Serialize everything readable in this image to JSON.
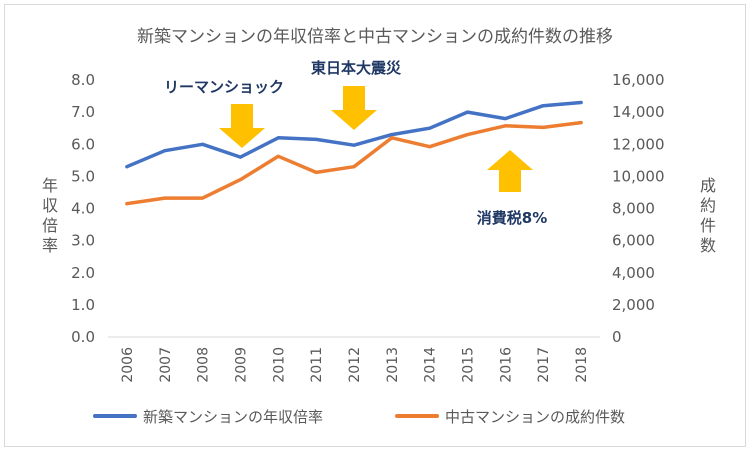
{
  "chart_data": {
    "type": "line",
    "title": "新築マンションの年収倍率と中古マンションの成約件数の推移",
    "categories": [
      "2006",
      "2007",
      "2008",
      "2009",
      "2010",
      "2011",
      "2012",
      "2013",
      "2014",
      "2015",
      "2016",
      "2017",
      "2018"
    ],
    "y_left": {
      "label": "年収倍率",
      "range": [
        0,
        8
      ],
      "ticks": [
        "0.0",
        "1.0",
        "2.0",
        "3.0",
        "4.0",
        "5.0",
        "6.0",
        "7.0",
        "8.0"
      ]
    },
    "y_right": {
      "label": "成約件数",
      "range": [
        0,
        16000
      ],
      "ticks": [
        "0",
        "2,000",
        "4,000",
        "6,000",
        "8,000",
        "10,000",
        "12,000",
        "14,000",
        "16,000"
      ]
    },
    "series": [
      {
        "name": "新築マンションの年収倍率",
        "axis": "left",
        "color": "#4472C4",
        "values": [
          5.3,
          5.8,
          6.0,
          5.6,
          6.2,
          6.15,
          5.97,
          6.3,
          6.5,
          7.0,
          6.8,
          7.2,
          7.3
        ]
      },
      {
        "name": "中古マンションの成約件数",
        "axis": "right",
        "color": "#ED7D31",
        "values": [
          8300,
          8650,
          8650,
          9800,
          11250,
          10250,
          10600,
          12400,
          11850,
          12600,
          13150,
          13050,
          13350
        ]
      }
    ],
    "annotations": [
      {
        "text": "リーマンショック",
        "category": "2009",
        "arrow": "down"
      },
      {
        "text": "東日本大震災",
        "category": "2012",
        "arrow": "down"
      },
      {
        "text": "消費税8%",
        "category": "2016",
        "arrow": "up"
      }
    ],
    "annotation_color": "#FFC000",
    "annotation_text_color": "#1F3864",
    "legend_position": "bottom",
    "grid": false
  }
}
